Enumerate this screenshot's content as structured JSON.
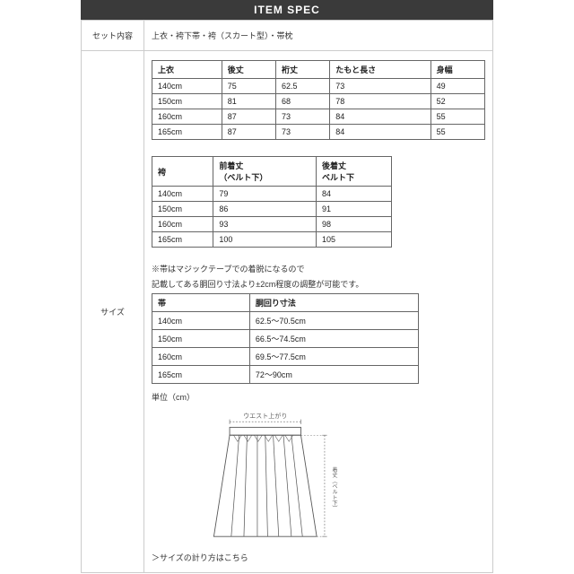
{
  "header": {
    "title": "ITEM SPEC"
  },
  "rows": {
    "set": {
      "label": "セット内容",
      "value": "上衣・袴下帯・袴（スカート型）・帯枕"
    },
    "size": {
      "label": "サイズ"
    }
  },
  "table1": {
    "headers": [
      "上衣",
      "後丈",
      "裄丈",
      "たもと長さ",
      "身幅"
    ],
    "rows": [
      [
        "140cm",
        "75",
        "62.5",
        "73",
        "49"
      ],
      [
        "150cm",
        "81",
        "68",
        "78",
        "52"
      ],
      [
        "160cm",
        "87",
        "73",
        "84",
        "55"
      ],
      [
        "165cm",
        "87",
        "73",
        "84",
        "55"
      ]
    ]
  },
  "table2": {
    "headers": [
      "袴",
      "前着丈\n（ベルト下）",
      "後着丈\nベルト下"
    ],
    "rows": [
      [
        "140cm",
        "79",
        "84"
      ],
      [
        "150cm",
        "86",
        "91"
      ],
      [
        "160cm",
        "93",
        "98"
      ],
      [
        "165cm",
        "100",
        "105"
      ]
    ]
  },
  "note1": "※帯はマジックテープでの着脱になるので",
  "note2": "記載してある胴回り寸法より±2cm程度の調整が可能です。",
  "table3": {
    "headers": [
      "帯",
      "胴回り寸法"
    ],
    "rows": [
      [
        "140cm",
        "62.5〜70.5cm"
      ],
      [
        "150cm",
        "66.5〜74.5cm"
      ],
      [
        "160cm",
        "69.5〜77.5cm"
      ],
      [
        "165cm",
        "72〜90cm"
      ]
    ]
  },
  "unit": "単位（cm）",
  "diagram": {
    "waist_label": "ウエスト上がり",
    "length_label": "着丈（ベルト下）"
  },
  "link": "＞サイズの計り方はこちら",
  "colors": {
    "header_bg": "#3a3a3a",
    "border": "#cccccc",
    "table_border": "#666666",
    "text": "#333333"
  }
}
